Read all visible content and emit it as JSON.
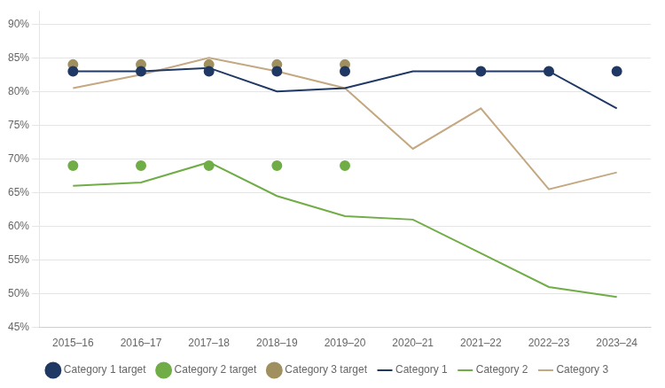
{
  "chart_data": {
    "type": "line",
    "categories": [
      "2015–16",
      "2016–17",
      "2017–18",
      "2018–19",
      "2019–20",
      "2020–21",
      "2021–22",
      "2022–23",
      "2023–24"
    ],
    "series": [
      {
        "name": "Category 1",
        "color": "#1f3864",
        "line_style": "solid",
        "marker": "none",
        "values": [
          83.0,
          83.0,
          83.5,
          80.0,
          80.5,
          83.0,
          83.0,
          83.0,
          77.5
        ]
      },
      {
        "name": "Category 2",
        "color": "#70ad47",
        "line_style": "solid",
        "marker": "none",
        "values": [
          66.0,
          66.5,
          69.5,
          64.5,
          61.5,
          61.0,
          56.0,
          51.0,
          49.5
        ]
      },
      {
        "name": "Category 3",
        "color": "#c4a882",
        "line_style": "solid",
        "marker": "none",
        "values": [
          80.5,
          82.5,
          85.0,
          83.0,
          80.5,
          71.5,
          77.5,
          65.5,
          68.0
        ]
      },
      {
        "name": "Category 1 target",
        "color": "#1f3864",
        "line_style": "none",
        "marker": "circle",
        "values": [
          83.0,
          83.0,
          83.0,
          83.0,
          83.0,
          null,
          83.0,
          83.0,
          83.0
        ]
      },
      {
        "name": "Category 2 target",
        "color": "#70ad47",
        "line_style": "none",
        "marker": "circle",
        "values": [
          69.0,
          69.0,
          69.0,
          69.0,
          69.0,
          null,
          null,
          null,
          null
        ]
      },
      {
        "name": "Category 3 target",
        "color": "#a09060",
        "line_style": "none",
        "marker": "circle",
        "values": [
          84.0,
          84.0,
          84.0,
          84.0,
          84.0,
          null,
          null,
          null,
          null
        ]
      }
    ],
    "ylim": [
      45,
      92
    ],
    "yticks": [
      {
        "value": 45,
        "label": "45%"
      },
      {
        "value": 50,
        "label": "50%"
      },
      {
        "value": 55,
        "label": "55%"
      },
      {
        "value": 60,
        "label": "60%"
      },
      {
        "value": 65,
        "label": "65%"
      },
      {
        "value": 70,
        "label": "70%"
      },
      {
        "value": 75,
        "label": "75%"
      },
      {
        "value": 80,
        "label": "80%"
      },
      {
        "value": 85,
        "label": "85%"
      },
      {
        "value": 90,
        "label": "90%"
      }
    ],
    "grid": true,
    "legend": "bottom"
  }
}
